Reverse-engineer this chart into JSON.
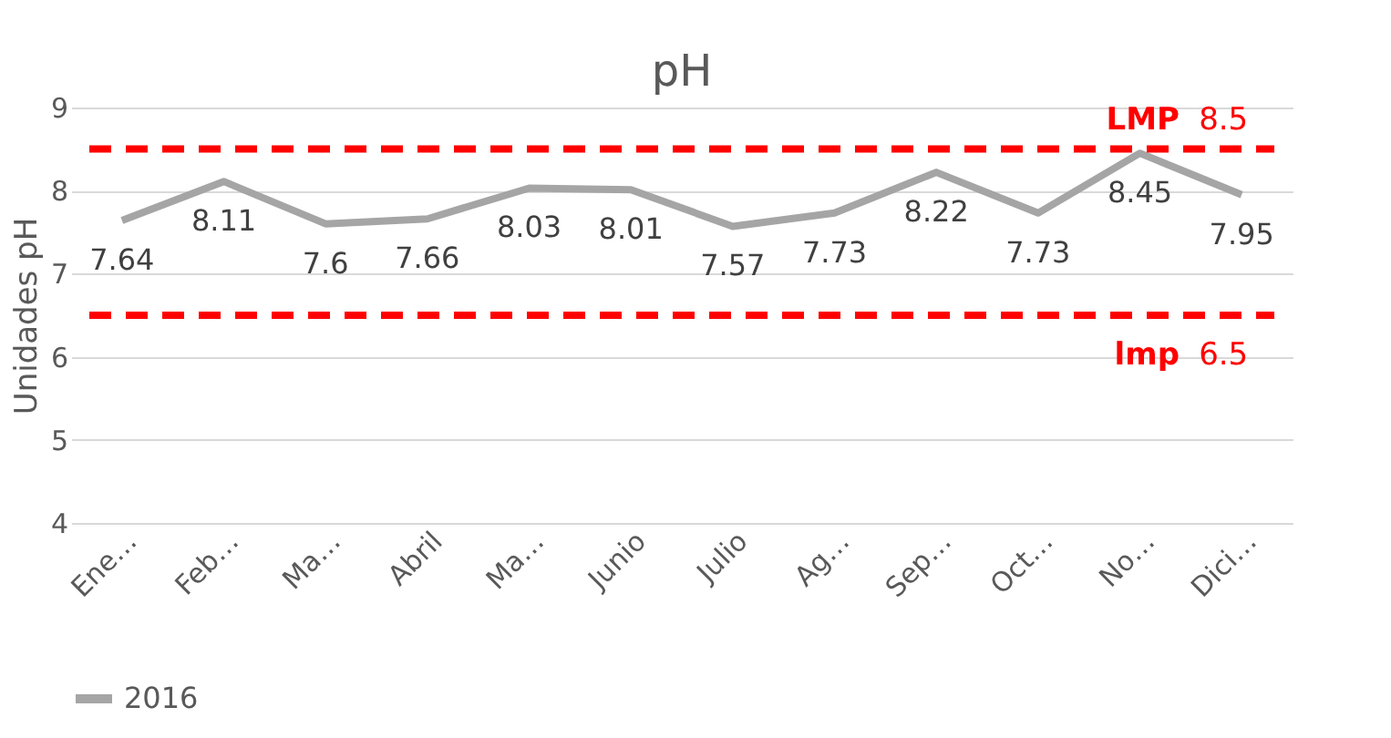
{
  "chart_data": {
    "type": "line",
    "title": "pH",
    "ylabel": "Unidades pH",
    "categories": [
      "Ene…",
      "Feb…",
      "Ma…",
      "Abril",
      "Ma…",
      "Junio",
      "Julio",
      "Ag…",
      "Sep…",
      "Oct…",
      "No…",
      "Dici…"
    ],
    "series": [
      {
        "name": "2016",
        "color": "#a5a5a5",
        "values": [
          7.64,
          8.11,
          7.6,
          7.66,
          8.03,
          8.01,
          7.57,
          7.73,
          8.22,
          7.73,
          8.45,
          7.95
        ]
      }
    ],
    "data_labels": true,
    "ylim": [
      4,
      9
    ],
    "yticks": [
      4,
      5,
      6,
      7,
      8,
      9
    ],
    "grid": "y",
    "legend": "bottom",
    "marker": "none",
    "line_style": "solid",
    "ref_lines": [
      {
        "axis": "y",
        "value": 8.5,
        "label": "LMP",
        "color": "#ff0000",
        "line_style": "dashed"
      },
      {
        "axis": "y",
        "value": 6.5,
        "label": "lmp",
        "color": "#ff0000",
        "line_style": "dashed"
      }
    ],
    "annotations": [
      {
        "text": "8.5",
        "x": "Dici…",
        "y": 8.5
      },
      {
        "text": "6.5",
        "x": "Dici…",
        "y": 6.5
      }
    ]
  }
}
